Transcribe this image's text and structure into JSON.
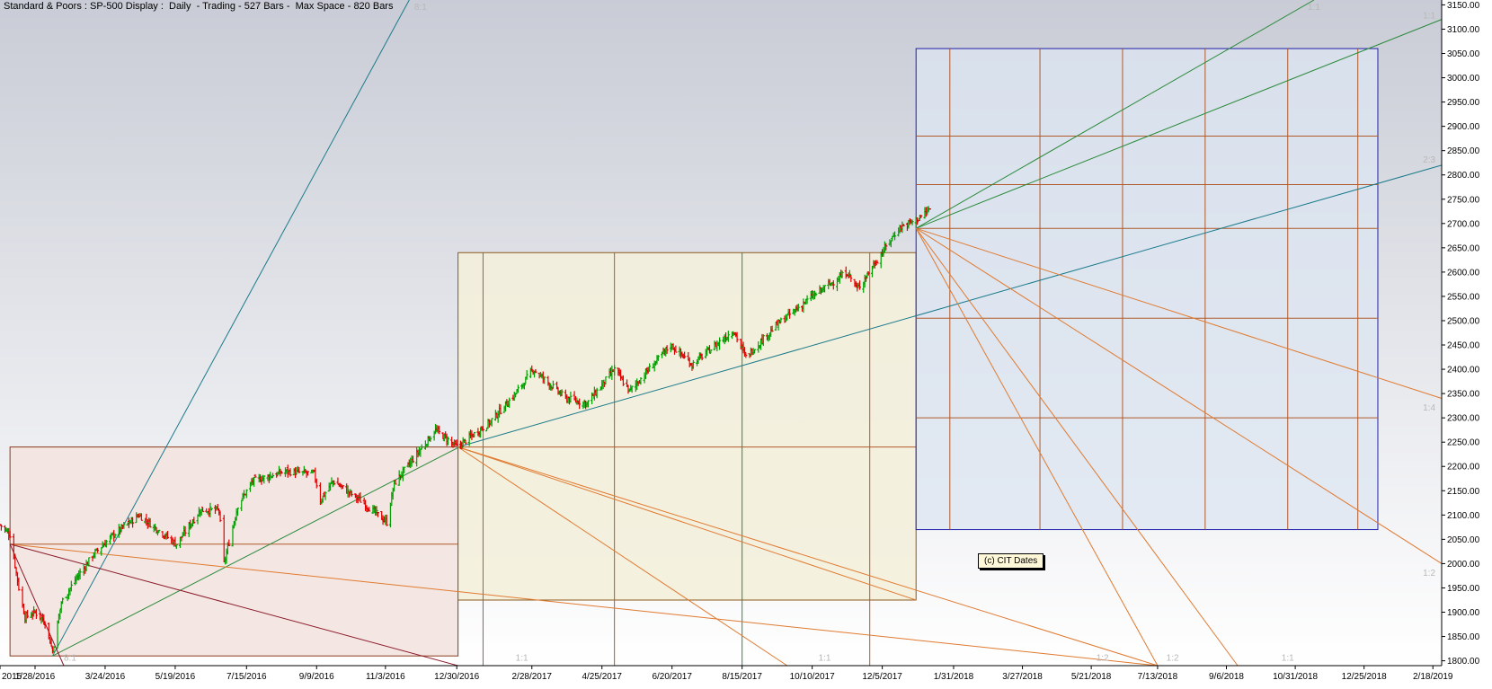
{
  "header": {
    "title": "Standard & Poors : SP-500 Display :  Daily  - Trading - 527 Bars -  Max Space - 820 Bars"
  },
  "watermark": "(c) CIT Dates",
  "colors": {
    "up_bar": "#00a000",
    "down_bar": "#e00000",
    "box_red_fill": "#f3e4e0",
    "box_red_stroke": "#8b3a1a",
    "box_yellow_fill": "#f4efdc",
    "box_yellow_stroke": "#8b5a1a",
    "box_blue_fill": "#dce6f2",
    "box_blue_stroke": "#1f1fa8",
    "grid_orange": "#b05a2a",
    "fan_green": "#2a8a3a",
    "fan_teal": "#1a7a8a",
    "fan_orange": "#e07a30",
    "fan_darkred": "#8b1a2a",
    "axis_text": "#000000",
    "ratio_label": "#b8b8b8",
    "bg_top": "#c9ccd6",
    "bg_bottom": "#ffffff"
  },
  "chart_data": {
    "type": "bar",
    "subtype": "ohlc-with-gann-boxes",
    "title": "Standard & Poors : SP-500 Display :  Daily  - Trading - 527 Bars -  Max Space - 820 Bars",
    "y_axis_position": "right",
    "ylim": [
      1790,
      3160
    ],
    "xlim": [
      "2015-12-31",
      "2019-02-25"
    ],
    "y_ticks": [
      1800,
      1850,
      1900,
      1950,
      2000,
      2050,
      2100,
      2150,
      2200,
      2250,
      2300,
      2350,
      2400,
      2450,
      2500,
      2550,
      2600,
      2650,
      2700,
      2750,
      2800,
      2850,
      2900,
      2950,
      3000,
      3050,
      3100,
      3150
    ],
    "x_ticks": [
      {
        "date": "2015-12-31",
        "label": "2015"
      },
      {
        "date": "2016-01-28",
        "label": "1/28/2016"
      },
      {
        "date": "2016-03-24",
        "label": "3/24/2016"
      },
      {
        "date": "2016-05-19",
        "label": "5/19/2016"
      },
      {
        "date": "2016-07-15",
        "label": "7/15/2016"
      },
      {
        "date": "2016-09-09",
        "label": "9/9/2016"
      },
      {
        "date": "2016-11-03",
        "label": "11/3/2016"
      },
      {
        "date": "2016-12-30",
        "label": "12/30/2016"
      },
      {
        "date": "2017-02-28",
        "label": "2/28/2017"
      },
      {
        "date": "2017-04-25",
        "label": "4/25/2017"
      },
      {
        "date": "2017-06-20",
        "label": "6/20/2017"
      },
      {
        "date": "2017-08-15",
        "label": "8/15/2017"
      },
      {
        "date": "2017-10-10",
        "label": "10/10/2017"
      },
      {
        "date": "2017-12-05",
        "label": "12/5/2017"
      },
      {
        "date": "2018-01-31",
        "label": "1/31/2018"
      },
      {
        "date": "2018-03-27",
        "label": "3/27/2018"
      },
      {
        "date": "2018-05-21",
        "label": "5/21/2018"
      },
      {
        "date": "2018-07-13",
        "label": "7/13/2018"
      },
      {
        "date": "2018-09-06",
        "label": "9/6/2018"
      },
      {
        "date": "2018-10-31",
        "label": "10/31/2018"
      },
      {
        "date": "2018-12-25",
        "label": "12/25/2018"
      },
      {
        "date": "2019-02-18",
        "label": "2/18/2019"
      }
    ],
    "price_path": [
      [
        "2015-12-31",
        2080
      ],
      [
        "2016-01-08",
        2060
      ],
      [
        "2016-01-15",
        1950
      ],
      [
        "2016-01-20",
        1890
      ],
      [
        "2016-01-28",
        1900
      ],
      [
        "2016-02-05",
        1880
      ],
      [
        "2016-02-11",
        1820
      ],
      [
        "2016-02-18",
        1920
      ],
      [
        "2016-03-01",
        1970
      ],
      [
        "2016-03-15",
        2020
      ],
      [
        "2016-03-31",
        2060
      ],
      [
        "2016-04-20",
        2100
      ],
      [
        "2016-05-10",
        2060
      ],
      [
        "2016-05-20",
        2040
      ],
      [
        "2016-06-08",
        2110
      ],
      [
        "2016-06-23",
        2110
      ],
      [
        "2016-06-27",
        2000
      ],
      [
        "2016-07-08",
        2120
      ],
      [
        "2016-07-20",
        2170
      ],
      [
        "2016-08-15",
        2190
      ],
      [
        "2016-09-07",
        2185
      ],
      [
        "2016-09-12",
        2130
      ],
      [
        "2016-09-22",
        2170
      ],
      [
        "2016-10-14",
        2130
      ],
      [
        "2016-11-04",
        2085
      ],
      [
        "2016-11-10",
        2165
      ],
      [
        "2016-12-13",
        2275
      ],
      [
        "2016-12-30",
        2240
      ],
      [
        "2017-01-25",
        2290
      ],
      [
        "2017-02-15",
        2350
      ],
      [
        "2017-03-01",
        2400
      ],
      [
        "2017-03-27",
        2340
      ],
      [
        "2017-04-13",
        2330
      ],
      [
        "2017-05-05",
        2400
      ],
      [
        "2017-05-17",
        2355
      ],
      [
        "2017-06-19",
        2450
      ],
      [
        "2017-07-06",
        2410
      ],
      [
        "2017-08-08",
        2480
      ],
      [
        "2017-08-18",
        2425
      ],
      [
        "2017-09-11",
        2490
      ],
      [
        "2017-10-10",
        2550
      ],
      [
        "2017-11-07",
        2600
      ],
      [
        "2017-11-15",
        2565
      ],
      [
        "2017-12-18",
        2690
      ],
      [
        "2018-01-03",
        2710
      ],
      [
        "2018-01-12",
        2730
      ]
    ],
    "gann_boxes": [
      {
        "name": "box-1",
        "start": "2016-01-08",
        "end": "2016-12-31",
        "low": 1810,
        "high": 2240,
        "mid": 2040,
        "vlines": []
      },
      {
        "name": "box-2",
        "start": "2016-12-31",
        "end": "2018-01-01",
        "low": 1925,
        "high": 2640,
        "mid": 2240,
        "vlines": [
          "2017-01-20",
          "2017-05-05",
          "2017-08-15",
          "2017-11-25"
        ]
      },
      {
        "name": "box-3",
        "start": "2018-01-01",
        "end": "2019-01-05",
        "low": 2070,
        "high": 3060,
        "hlines": [
          2300,
          2505,
          2690,
          2780,
          2880
        ],
        "vlines": [
          "2018-01-28",
          "2018-04-10",
          "2018-06-15",
          "2018-08-20",
          "2018-10-25",
          "2018-12-20"
        ]
      }
    ],
    "angle_fans": [
      {
        "from": [
          "2016-02-11",
          1810
        ],
        "to": [
          "2016-11-22",
          3160
        ],
        "label": "8:1"
      },
      {
        "from": [
          "2016-02-11",
          1810
        ],
        "to": [
          "2017-01-01",
          2240
        ]
      },
      {
        "from": [
          "2016-12-31",
          2240
        ],
        "to": [
          "2019-02-25",
          2820
        ],
        "label": "2:3"
      },
      {
        "from": [
          "2018-01-01",
          2690
        ],
        "to": [
          "2018-11-15",
          3160
        ],
        "label": "1:1"
      },
      {
        "from": [
          "2018-01-01",
          2690
        ],
        "to": [
          "2019-02-25",
          3120
        ],
        "label": "1:1"
      },
      {
        "from": [
          "2018-01-01",
          2690
        ],
        "to": [
          "2018-07-13",
          1790
        ]
      },
      {
        "from": [
          "2018-01-01",
          2690
        ],
        "to": [
          "2018-09-15",
          1790
        ]
      },
      {
        "from": [
          "2018-01-01",
          2690
        ],
        "to": [
          "2019-02-25",
          2000
        ],
        "label": "1:2"
      },
      {
        "from": [
          "2018-01-01",
          2690
        ],
        "to": [
          "2019-02-25",
          2340
        ],
        "label": "1:4"
      },
      {
        "from": [
          "2016-12-31",
          2240
        ],
        "to": [
          "2017-09-20",
          1790
        ]
      },
      {
        "from": [
          "2016-12-31",
          2240
        ],
        "to": [
          "2018-07-13",
          1790
        ]
      },
      {
        "from": [
          "2016-12-31",
          2240
        ],
        "to": [
          "2018-01-01",
          1925
        ]
      },
      {
        "from": [
          "2016-01-08",
          2040
        ],
        "to": [
          "2018-07-13",
          1790
        ]
      },
      {
        "from": [
          "2016-01-08",
          2040
        ],
        "to": [
          "2016-12-31",
          1790
        ]
      },
      {
        "from": [
          "2016-01-08",
          2040
        ],
        "to": [
          "2016-02-20",
          1790
        ]
      }
    ],
    "ratio_labels": [
      {
        "date": "2016-11-26",
        "price": 3140,
        "text": "8:1"
      },
      {
        "date": "2018-11-10",
        "price": 3140,
        "text": "1:1"
      },
      {
        "date": "2019-02-10",
        "price": 3122,
        "text": "1:1"
      },
      {
        "date": "2019-02-10",
        "price": 2825,
        "text": "2:3"
      },
      {
        "date": "2019-02-10",
        "price": 2315,
        "text": "1:4"
      },
      {
        "date": "2019-02-10",
        "price": 1975,
        "text": "1:2"
      },
      {
        "date": "2016-02-20",
        "price": 1800,
        "text": "8:1"
      },
      {
        "date": "2017-02-15",
        "price": 1800,
        "text": "1:1"
      },
      {
        "date": "2017-10-15",
        "price": 1800,
        "text": "1:1"
      },
      {
        "date": "2018-05-25",
        "price": 1800,
        "text": "1:2"
      },
      {
        "date": "2018-07-20",
        "price": 1800,
        "text": "1:2"
      },
      {
        "date": "2018-10-20",
        "price": 1800,
        "text": "1:1"
      }
    ]
  }
}
